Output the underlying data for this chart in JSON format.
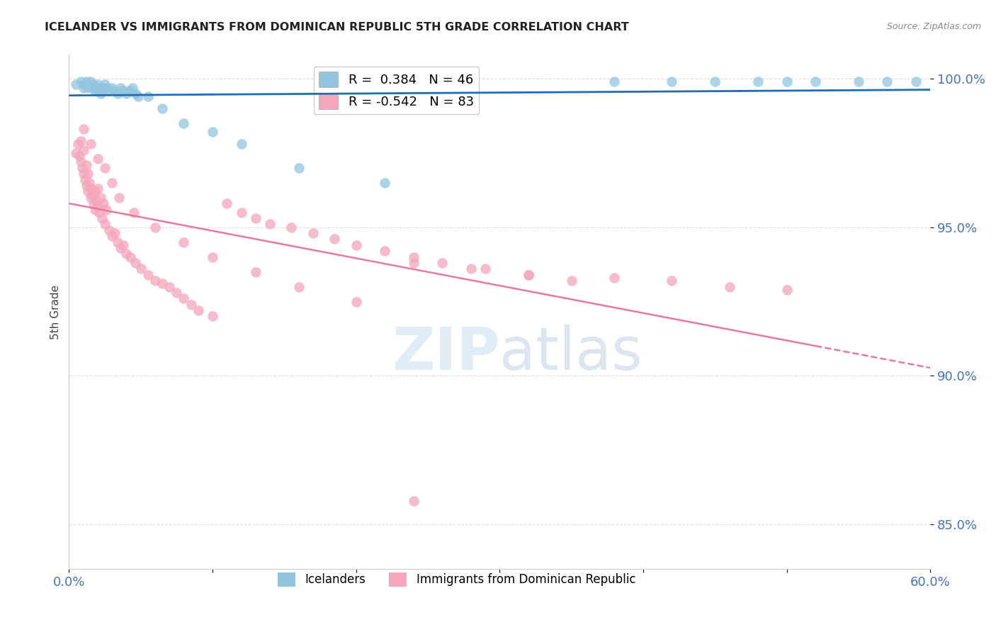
{
  "title": "ICELANDER VS IMMIGRANTS FROM DOMINICAN REPUBLIC 5TH GRADE CORRELATION CHART",
  "source": "Source: ZipAtlas.com",
  "ylabel": "5th Grade",
  "xlim": [
    0.0,
    0.6
  ],
  "ylim": [
    0.925,
    1.008
  ],
  "yticks": [
    0.85,
    0.9,
    0.95,
    1.0
  ],
  "ytick_labels": [
    "85.0%",
    "90.0%",
    "95.0%",
    "100.0%"
  ],
  "xticks": [
    0.0,
    0.1,
    0.2,
    0.3,
    0.4,
    0.5,
    0.6
  ],
  "xtick_labels": [
    "0.0%",
    "",
    "",
    "",
    "",
    "",
    "60.0%"
  ],
  "blue_R": 0.384,
  "blue_N": 46,
  "pink_R": -0.542,
  "pink_N": 83,
  "blue_color": "#92c5de",
  "pink_color": "#f4a6bb",
  "blue_line_color": "#1f6eb5",
  "pink_line_color": "#e8799a",
  "title_color": "#222222",
  "axis_color": "#4472c4",
  "grid_color": "#e0e0e0",
  "legend_label_blue": "Icelanders",
  "legend_label_pink": "Immigrants from Dominican Republic",
  "blue_scatter_x": [
    0.005,
    0.008,
    0.01,
    0.01,
    0.012,
    0.013,
    0.014,
    0.015,
    0.016,
    0.017,
    0.018,
    0.019,
    0.02,
    0.021,
    0.022,
    0.023,
    0.024,
    0.025,
    0.026,
    0.028,
    0.03,
    0.032,
    0.034,
    0.036,
    0.038,
    0.04,
    0.042,
    0.044,
    0.046,
    0.048,
    0.055,
    0.065,
    0.08,
    0.1,
    0.12,
    0.16,
    0.22,
    0.42,
    0.45,
    0.48,
    0.52,
    0.55,
    0.57,
    0.59,
    0.38,
    0.5
  ],
  "blue_scatter_y": [
    0.998,
    0.999,
    0.998,
    0.997,
    0.999,
    0.997,
    0.998,
    0.999,
    0.997,
    0.998,
    0.996,
    0.997,
    0.998,
    0.996,
    0.995,
    0.997,
    0.996,
    0.998,
    0.997,
    0.996,
    0.997,
    0.996,
    0.995,
    0.997,
    0.996,
    0.995,
    0.996,
    0.997,
    0.995,
    0.994,
    0.994,
    0.99,
    0.985,
    0.982,
    0.978,
    0.97,
    0.965,
    0.999,
    0.999,
    0.999,
    0.999,
    0.999,
    0.999,
    0.999,
    0.999,
    0.999
  ],
  "pink_scatter_x": [
    0.005,
    0.006,
    0.007,
    0.008,
    0.008,
    0.009,
    0.01,
    0.01,
    0.011,
    0.012,
    0.012,
    0.013,
    0.013,
    0.014,
    0.015,
    0.015,
    0.016,
    0.017,
    0.018,
    0.018,
    0.019,
    0.02,
    0.02,
    0.021,
    0.022,
    0.023,
    0.024,
    0.025,
    0.026,
    0.028,
    0.03,
    0.032,
    0.034,
    0.036,
    0.038,
    0.04,
    0.043,
    0.046,
    0.05,
    0.055,
    0.06,
    0.065,
    0.07,
    0.075,
    0.08,
    0.085,
    0.09,
    0.1,
    0.11,
    0.12,
    0.13,
    0.14,
    0.155,
    0.17,
    0.185,
    0.2,
    0.22,
    0.24,
    0.26,
    0.29,
    0.32,
    0.35,
    0.01,
    0.015,
    0.02,
    0.025,
    0.03,
    0.035,
    0.045,
    0.06,
    0.08,
    0.1,
    0.13,
    0.16,
    0.2,
    0.24,
    0.28,
    0.32,
    0.38,
    0.42,
    0.46,
    0.5,
    0.24
  ],
  "pink_scatter_y": [
    0.975,
    0.978,
    0.974,
    0.972,
    0.979,
    0.97,
    0.968,
    0.976,
    0.966,
    0.971,
    0.964,
    0.968,
    0.962,
    0.965,
    0.963,
    0.96,
    0.961,
    0.958,
    0.956,
    0.962,
    0.959,
    0.957,
    0.963,
    0.955,
    0.96,
    0.953,
    0.958,
    0.951,
    0.956,
    0.949,
    0.947,
    0.948,
    0.945,
    0.943,
    0.944,
    0.941,
    0.94,
    0.938,
    0.936,
    0.934,
    0.932,
    0.931,
    0.93,
    0.928,
    0.926,
    0.924,
    0.922,
    0.92,
    0.958,
    0.955,
    0.953,
    0.951,
    0.95,
    0.948,
    0.946,
    0.944,
    0.942,
    0.94,
    0.938,
    0.936,
    0.934,
    0.932,
    0.983,
    0.978,
    0.973,
    0.97,
    0.965,
    0.96,
    0.955,
    0.95,
    0.945,
    0.94,
    0.935,
    0.93,
    0.925,
    0.938,
    0.936,
    0.934,
    0.933,
    0.932,
    0.93,
    0.929,
    0.858
  ]
}
